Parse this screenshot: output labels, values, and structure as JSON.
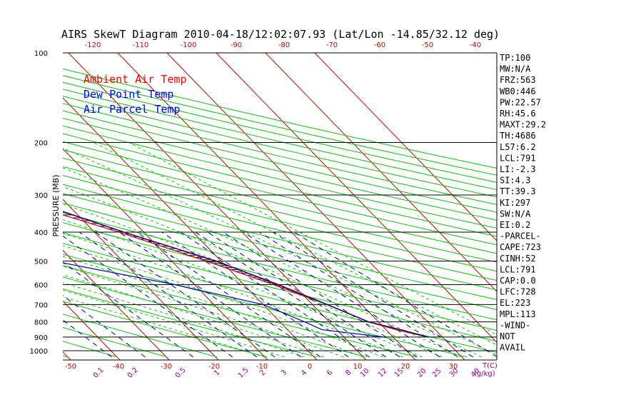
{
  "chart_data": {
    "type": "line",
    "title": "AIRS SkewT Diagram 2010-04-18/12:02:07.93 (Lat/Lon -14.85/32.12 deg)",
    "ylabel": "PRESSURE (MB)",
    "y_scale": "log",
    "ylim": [
      1050,
      100
    ],
    "pressure_ticks": [
      100,
      200,
      300,
      400,
      500,
      600,
      700,
      800,
      900,
      1000
    ],
    "top_temp_ticks": [
      -120,
      -110,
      -100,
      -90,
      -80,
      -70,
      -60,
      -50,
      -40
    ],
    "bottom_temp_ticks": [
      -50,
      -40,
      -30,
      -20,
      -10,
      0,
      10,
      20,
      30
    ],
    "bottom_axis_unit": "T(C)",
    "mixing_ratio_ticks": [
      "0.1",
      "0.2",
      "0.5",
      "1",
      "1.5",
      "2",
      "3",
      "4",
      "6",
      "8",
      "10",
      "12",
      "15",
      "20",
      "25",
      "30",
      "40"
    ],
    "mixing_ratio_unit": "(g/kg)",
    "legend": [
      {
        "label": "Ambient Air Temp",
        "color": "#ff0000"
      },
      {
        "label": "Dew Point Temp",
        "color": "#0000ff"
      },
      {
        "label": "Air Parcel Temp",
        "color": "#0000ff"
      }
    ],
    "series": [
      {
        "name": "Ambient Air Temp",
        "color": "#cc0000",
        "p": [
          100,
          150,
          200,
          250,
          300,
          350,
          400,
          500,
          600,
          700,
          800,
          850,
          900
        ],
        "t": [
          -87,
          -68,
          -55,
          -42,
          -33,
          -23,
          -15,
          -3,
          6,
          13,
          18,
          22,
          27
        ]
      },
      {
        "name": "Dew Point Temp",
        "color": "#0000cc",
        "p": [
          100,
          150,
          200,
          250,
          300,
          350,
          400,
          500,
          600,
          700,
          800,
          850,
          900
        ],
        "t": [
          -92,
          -91,
          -93,
          -95,
          -85,
          -77,
          -65,
          -34,
          -14,
          0,
          5,
          7,
          18
        ]
      },
      {
        "name": "Air Parcel Temp",
        "color": "#330066",
        "p": [
          100,
          150,
          200,
          250,
          300,
          400,
          500,
          600,
          700,
          800,
          850,
          900
        ],
        "t": [
          -92,
          -72,
          -56,
          -38,
          -29,
          -14,
          -1,
          7,
          13,
          18,
          23,
          27
        ]
      }
    ]
  },
  "indices": [
    "TP:100",
    "MW:N/A",
    "FRZ:563",
    "WB0:446",
    "PW:22.57",
    "RH:45.6",
    "MAXT:29.2",
    "TH:4686",
    "L57:6.2",
    "LCL:791",
    "LI:-2.3",
    "SI:4.3",
    "TT:39.3",
    "KI:297",
    "SW:N/A",
    "EI:0.2",
    "-PARCEL-",
    "CAPE:723",
    "CINH:52",
    "LCL:791",
    "CAP:0.0",
    "LFC:728",
    "EL:223",
    "MPL:113",
    "-WIND-",
    "NOT",
    "AVAIL"
  ],
  "colors": {
    "isotherm": "#cc0000",
    "dry_adiabat": "#00cc00",
    "moist_adiabat": "#00cc00",
    "mixing_ratio": "#000099",
    "tick_red": "#cc0000",
    "tick_purple": "#990099",
    "isobar": "#000000"
  }
}
